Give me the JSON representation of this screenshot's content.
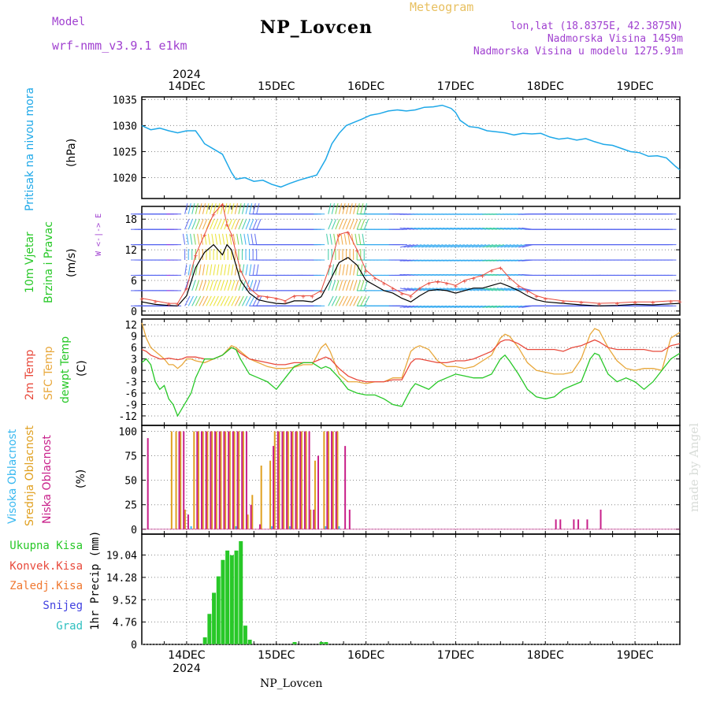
{
  "header": {
    "model_label": "Model",
    "model_name": "wrf-nmm_v3.9.1 e1km",
    "station": "NP_Lovcen",
    "meteogram": "Meteogram",
    "lonlat": "lon,lat (18.8375E, 42.3875N)",
    "altitude": "Nadmorska Visina 1459m",
    "model_altitude": "Nadmorska Visina u modelu 1275.91m",
    "footer": "NP_Lovcen",
    "credit": "made by Angel"
  },
  "colors": {
    "pressure": "#1ea8e8",
    "temp2m": "#e84a3c",
    "sfc": "#e8a83c",
    "dewpt": "#28c828",
    "cloud_high": "#38b8f0",
    "cloud_mid": "#e0a020",
    "cloud_low": "#c8208a",
    "precip": "#28c828",
    "header_purple": "#a040d0",
    "header_gold": "#e8c060"
  },
  "chart_data": [
    {
      "type": "line",
      "panel": "pressure",
      "ylabel": [
        "Pritisak na nivou mora",
        "(hPa)"
      ],
      "ylim": [
        1016,
        1035.5
      ],
      "yticks": [
        1020,
        1025,
        1030,
        1035
      ],
      "x_years": [
        "2024",
        "2024"
      ],
      "x_labels": [
        "14DEC",
        "15DEC",
        "16DEC",
        "17DEC",
        "18DEC",
        "19DEC"
      ],
      "x_days": [
        0,
        1,
        2,
        3,
        4,
        5
      ],
      "xlim": [
        -0.5,
        5.5
      ],
      "x": [
        -0.5,
        -0.4,
        -0.3,
        -0.2,
        -0.1,
        0.0,
        0.1,
        0.15,
        0.2,
        0.3,
        0.4,
        0.5,
        0.55,
        0.65,
        0.75,
        0.85,
        0.95,
        1.05,
        1.15,
        1.25,
        1.35,
        1.45,
        1.55,
        1.62,
        1.7,
        1.78,
        1.85,
        1.95,
        2.05,
        2.15,
        2.25,
        2.35,
        2.45,
        2.55,
        2.65,
        2.75,
        2.85,
        2.95,
        3.0,
        3.05,
        3.15,
        3.25,
        3.35,
        3.45,
        3.55,
        3.65,
        3.75,
        3.85,
        3.95,
        4.05,
        4.15,
        4.25,
        4.35,
        4.45,
        4.55,
        4.65,
        4.75,
        4.85,
        4.95,
        5.05,
        5.15,
        5.25,
        5.35,
        5.45,
        5.5
      ],
      "series": [
        {
          "values": [
            1030.0,
            1029.2,
            1029.5,
            1029.0,
            1028.6,
            1029.0,
            1029.0,
            1027.8,
            1026.5,
            1025.5,
            1024.5,
            1021.0,
            1019.7,
            1020.0,
            1019.3,
            1019.5,
            1018.7,
            1018.2,
            1018.9,
            1019.5,
            1020.0,
            1020.5,
            1023.5,
            1026.5,
            1028.5,
            1030.0,
            1030.5,
            1031.2,
            1032.0,
            1032.3,
            1032.8,
            1033.0,
            1032.8,
            1033.0,
            1033.5,
            1033.6,
            1033.9,
            1033.3,
            1032.5,
            1031.0,
            1029.8,
            1029.6,
            1029.0,
            1028.8,
            1028.6,
            1028.2,
            1028.5,
            1028.4,
            1028.5,
            1027.8,
            1027.4,
            1027.6,
            1027.2,
            1027.5,
            1026.9,
            1026.4,
            1026.2,
            1025.6,
            1025.0,
            1024.8,
            1024.1,
            1024.2,
            1023.8,
            1022.2,
            1021.5
          ]
        }
      ]
    },
    {
      "type": "wind",
      "panel": "wind",
      "ylabel": [
        "10m Vjetar",
        "Brzina i Pravac",
        "(m/s)"
      ],
      "compass": "W  <-|->  E",
      "ylim": [
        -0.8,
        20.5
      ],
      "yticks": [
        0,
        6,
        12,
        18
      ],
      "x": [
        -0.5,
        -0.35,
        -0.2,
        -0.1,
        0.0,
        0.1,
        0.2,
        0.3,
        0.4,
        0.45,
        0.5,
        0.6,
        0.7,
        0.8,
        0.9,
        1.0,
        1.1,
        1.2,
        1.3,
        1.4,
        1.5,
        1.6,
        1.7,
        1.8,
        1.9,
        2.0,
        2.1,
        2.2,
        2.3,
        2.4,
        2.5,
        2.6,
        2.7,
        2.8,
        2.9,
        3.0,
        3.1,
        3.2,
        3.3,
        3.4,
        3.5,
        3.6,
        3.7,
        3.8,
        3.9,
        4.0,
        4.2,
        4.4,
        4.6,
        4.8,
        5.0,
        5.2,
        5.4,
        5.5
      ],
      "series": [
        {
          "name": "speed",
          "values": [
            1.8,
            1.3,
            1.1,
            1.0,
            3.0,
            8.5,
            11.5,
            13.0,
            11.0,
            13.0,
            12.0,
            6.0,
            3.5,
            2.2,
            1.8,
            1.5,
            1.4,
            2.0,
            2.0,
            1.8,
            2.8,
            6.0,
            9.5,
            10.5,
            9.0,
            6.0,
            5.0,
            4.0,
            3.5,
            2.5,
            1.8,
            3.0,
            4.0,
            4.2,
            4.0,
            3.5,
            4.0,
            4.5,
            4.5,
            5.0,
            5.5,
            4.8,
            4.0,
            3.0,
            2.2,
            1.8,
            1.5,
            1.2,
            1.0,
            1.1,
            1.3,
            1.2,
            1.4,
            1.5
          ]
        },
        {
          "name": "gust",
          "values": [
            2.5,
            2.0,
            1.5,
            1.5,
            4.5,
            11.0,
            15.0,
            19.0,
            21.0,
            17.0,
            15.0,
            8.0,
            4.5,
            3.0,
            2.8,
            2.5,
            2.0,
            3.0,
            3.0,
            3.0,
            4.0,
            9.0,
            15.0,
            15.5,
            12.0,
            8.0,
            6.5,
            5.5,
            4.5,
            3.5,
            3.0,
            4.5,
            5.5,
            5.8,
            5.5,
            5.0,
            6.0,
            6.5,
            7.0,
            8.0,
            8.5,
            6.5,
            5.0,
            4.0,
            3.0,
            2.5,
            2.0,
            1.8,
            1.5,
            1.6,
            1.8,
            1.8,
            2.0,
            2.0
          ]
        }
      ]
    },
    {
      "type": "line",
      "panel": "temperature",
      "ylabel": [
        "2m Temp",
        "SFC Temp",
        "dewpt Temp",
        "(C)"
      ],
      "ylim": [
        -14.5,
        13.5
      ],
      "yticks": [
        -12,
        -9,
        -6,
        -3,
        0,
        3,
        6,
        9,
        12
      ],
      "x": [
        -0.5,
        -0.45,
        -0.4,
        -0.35,
        -0.3,
        -0.25,
        -0.2,
        -0.15,
        -0.1,
        -0.05,
        0.0,
        0.05,
        0.1,
        0.2,
        0.3,
        0.4,
        0.5,
        0.55,
        0.6,
        0.7,
        0.8,
        0.9,
        1.0,
        1.1,
        1.2,
        1.3,
        1.4,
        1.5,
        1.55,
        1.6,
        1.7,
        1.8,
        1.9,
        2.0,
        2.1,
        2.2,
        2.3,
        2.4,
        2.5,
        2.55,
        2.6,
        2.7,
        2.8,
        2.9,
        3.0,
        3.1,
        3.2,
        3.3,
        3.4,
        3.5,
        3.55,
        3.6,
        3.7,
        3.8,
        3.9,
        4.0,
        4.1,
        4.2,
        4.3,
        4.4,
        4.5,
        4.55,
        4.6,
        4.7,
        4.8,
        4.9,
        5.0,
        5.1,
        5.2,
        5.3,
        5.4,
        5.5
      ],
      "series": [
        {
          "name": "2m Temp",
          "values": [
            5.5,
            5.0,
            4.0,
            3.5,
            3.0,
            3.0,
            3.2,
            3.0,
            2.8,
            3.0,
            3.5,
            3.5,
            3.5,
            3.0,
            3.0,
            4.0,
            6.0,
            5.5,
            4.5,
            3.0,
            2.5,
            2.0,
            1.5,
            1.5,
            2.0,
            2.0,
            2.0,
            3.0,
            3.5,
            3.0,
            0.5,
            -1.5,
            -2.5,
            -3.0,
            -3.0,
            -3.0,
            -2.5,
            -2.5,
            2.0,
            3.0,
            3.0,
            2.5,
            2.0,
            2.0,
            2.5,
            2.5,
            3.0,
            4.0,
            5.0,
            7.5,
            8.0,
            8.0,
            7.0,
            5.5,
            5.5,
            5.5,
            5.5,
            5.0,
            6.0,
            6.5,
            7.5,
            8.0,
            7.5,
            6.0,
            5.5,
            5.5,
            5.5,
            5.5,
            5.0,
            5.0,
            6.5,
            7.0
          ]
        },
        {
          "name": "SFC Temp",
          "values": [
            12.5,
            8.5,
            6.0,
            5.0,
            4.0,
            3.0,
            1.5,
            1.5,
            0.5,
            1.5,
            3.0,
            3.0,
            2.5,
            2.0,
            3.0,
            4.0,
            6.5,
            6.0,
            5.0,
            3.0,
            2.0,
            1.0,
            0.5,
            0.5,
            0.8,
            1.5,
            1.5,
            6.0,
            7.0,
            5.0,
            -1.0,
            -3.0,
            -3.0,
            -3.5,
            -3.0,
            -3.0,
            -2.0,
            -2.0,
            5.0,
            6.0,
            6.5,
            5.5,
            2.5,
            1.0,
            1.0,
            0.5,
            1.0,
            2.5,
            4.0,
            8.5,
            9.5,
            9.0,
            6.0,
            2.0,
            0.0,
            -0.5,
            -1.0,
            -1.0,
            -0.5,
            3.0,
            9.5,
            11.0,
            10.5,
            6.0,
            2.5,
            0.5,
            0.0,
            0.5,
            0.5,
            0.0,
            8.5,
            10.0
          ]
        },
        {
          "name": "dewpt Temp",
          "values": [
            2.0,
            3.0,
            1.5,
            -3.0,
            -5.0,
            -4.0,
            -7.5,
            -9.0,
            -12.0,
            -10.0,
            -8.0,
            -6.0,
            -2.0,
            3.0,
            3.0,
            4.0,
            6.0,
            5.5,
            3.0,
            -1.0,
            -2.0,
            -3.0,
            -5.0,
            -2.0,
            1.0,
            2.0,
            2.0,
            0.5,
            1.0,
            0.5,
            -2.0,
            -5.0,
            -6.0,
            -6.5,
            -6.5,
            -7.5,
            -9.0,
            -9.5,
            -5.0,
            -3.5,
            -4.0,
            -5.0,
            -3.0,
            -2.0,
            -1.0,
            -1.5,
            -2.0,
            -2.0,
            -1.0,
            3.0,
            4.0,
            2.5,
            -1.0,
            -5.0,
            -7.0,
            -7.5,
            -7.0,
            -5.0,
            -4.0,
            -3.0,
            3.0,
            4.5,
            4.0,
            -1.0,
            -3.0,
            -2.0,
            -3.0,
            -5.0,
            -3.0,
            0.0,
            3.0,
            4.5
          ]
        }
      ]
    },
    {
      "type": "bar",
      "panel": "clouds",
      "ylabel": [
        "Visoka Oblacnost",
        "Srednja Oblacnost",
        "Niska Oblacnost",
        "(%)"
      ],
      "ylim": [
        -5,
        106
      ],
      "yticks": [
        0,
        25,
        50,
        75,
        100
      ],
      "series": [
        {
          "name": "Visoka Oblacnost",
          "x": [
            0.05,
            0.55,
            0.95,
            1.15,
            1.55,
            1.7
          ],
          "values": [
            3,
            3,
            3,
            3,
            3,
            3
          ]
        },
        {
          "name": "Srednja Oblacnost",
          "x": [
            -0.15,
            -0.1,
            -0.05,
            0.0,
            0.1,
            0.15,
            0.2,
            0.25,
            0.3,
            0.35,
            0.4,
            0.45,
            0.5,
            0.55,
            0.6,
            0.65,
            0.7,
            0.75,
            0.85,
            0.95,
            1.0,
            1.05,
            1.1,
            1.15,
            1.2,
            1.25,
            1.3,
            1.35,
            1.4,
            1.45,
            1.55,
            1.6,
            1.65,
            1.7
          ],
          "values": [
            100,
            100,
            100,
            20,
            100,
            100,
            100,
            100,
            100,
            100,
            100,
            100,
            100,
            100,
            100,
            100,
            15,
            35,
            65,
            70,
            100,
            100,
            100,
            100,
            100,
            100,
            100,
            100,
            20,
            70,
            100,
            100,
            100,
            100
          ]
        },
        {
          "name": "Niska Oblacnost",
          "x": [
            -0.45,
            -0.1,
            -0.05,
            0.0,
            0.1,
            0.15,
            0.2,
            0.25,
            0.3,
            0.35,
            0.4,
            0.45,
            0.5,
            0.55,
            0.6,
            0.65,
            0.7,
            0.8,
            0.95,
            1.0,
            1.05,
            1.1,
            1.15,
            1.2,
            1.25,
            1.3,
            1.35,
            1.4,
            1.45,
            1.55,
            1.6,
            1.65,
            1.75,
            1.8,
            4.1,
            4.15,
            4.3,
            4.35,
            4.45,
            4.6
          ],
          "values": [
            93,
            100,
            100,
            15,
            100,
            100,
            100,
            100,
            100,
            100,
            100,
            100,
            100,
            100,
            100,
            100,
            25,
            5,
            85,
            100,
            100,
            100,
            100,
            100,
            100,
            100,
            100,
            20,
            75,
            100,
            100,
            100,
            85,
            20,
            10,
            10,
            10,
            10,
            10,
            20
          ]
        }
      ]
    },
    {
      "type": "bar",
      "panel": "precip",
      "ylabel": [
        "1hr Precip (mm)"
      ],
      "legend": [
        "Ukupna Kisa",
        "Konvek.Kisa",
        "Zaledj.Kisa",
        "Snijeg",
        "Grad"
      ],
      "ylim": [
        0,
        23.5
      ],
      "yticks": [
        0,
        4.76,
        9.52,
        14.28,
        19.04
      ],
      "ytick_labels": [
        "0",
        "4.76",
        "9.52",
        "14.28",
        "19.04"
      ],
      "x_labels": [
        "14DEC",
        "15DEC",
        "16DEC",
        "17DEC",
        "18DEC",
        "19DEC"
      ],
      "x_year": "2024",
      "series": [
        {
          "name": "Ukupna Kisa",
          "x": [
            0.2,
            0.25,
            0.3,
            0.35,
            0.4,
            0.45,
            0.5,
            0.55,
            0.6,
            0.65,
            0.7,
            1.2,
            1.5,
            1.55
          ],
          "values": [
            1.5,
            6.5,
            11.0,
            14.5,
            18.0,
            20.0,
            19.0,
            20.0,
            22.0,
            4.0,
            1.0,
            0.5,
            0.5,
            0.5
          ]
        }
      ]
    }
  ]
}
